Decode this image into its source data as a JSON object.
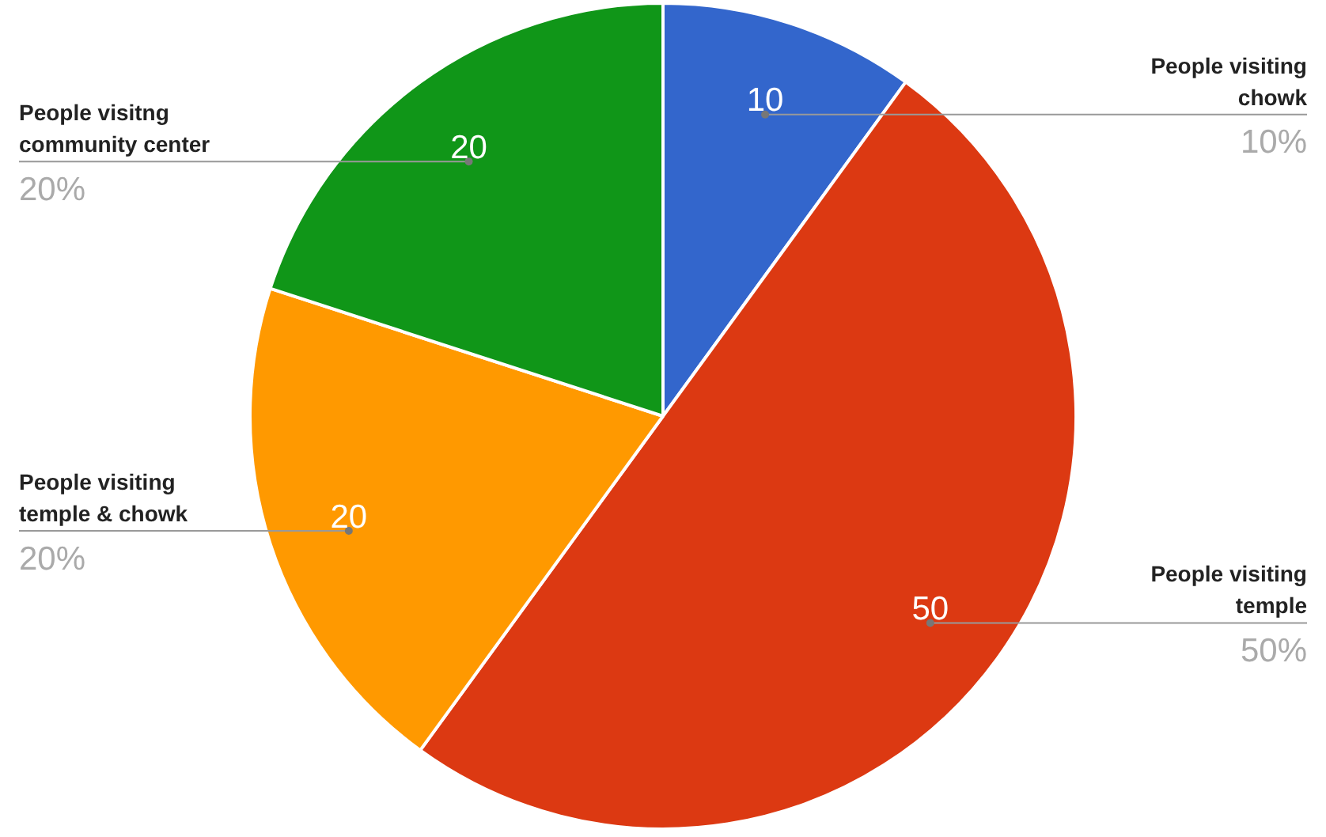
{
  "chart_data": {
    "type": "pie",
    "categories": [
      "People visiting chowk",
      "People visiting temple",
      "People visiting temple & chowk",
      "People visitng community center"
    ],
    "values": [
      10,
      50,
      20,
      20
    ],
    "colors": [
      "#3366cc",
      "#dc3912",
      "#ff9900",
      "#109618"
    ],
    "value_labels": [
      "10",
      "50",
      "20",
      "20"
    ],
    "annotations": [
      "10%",
      "50%",
      "20%",
      "20%"
    ],
    "legend": false
  }
}
